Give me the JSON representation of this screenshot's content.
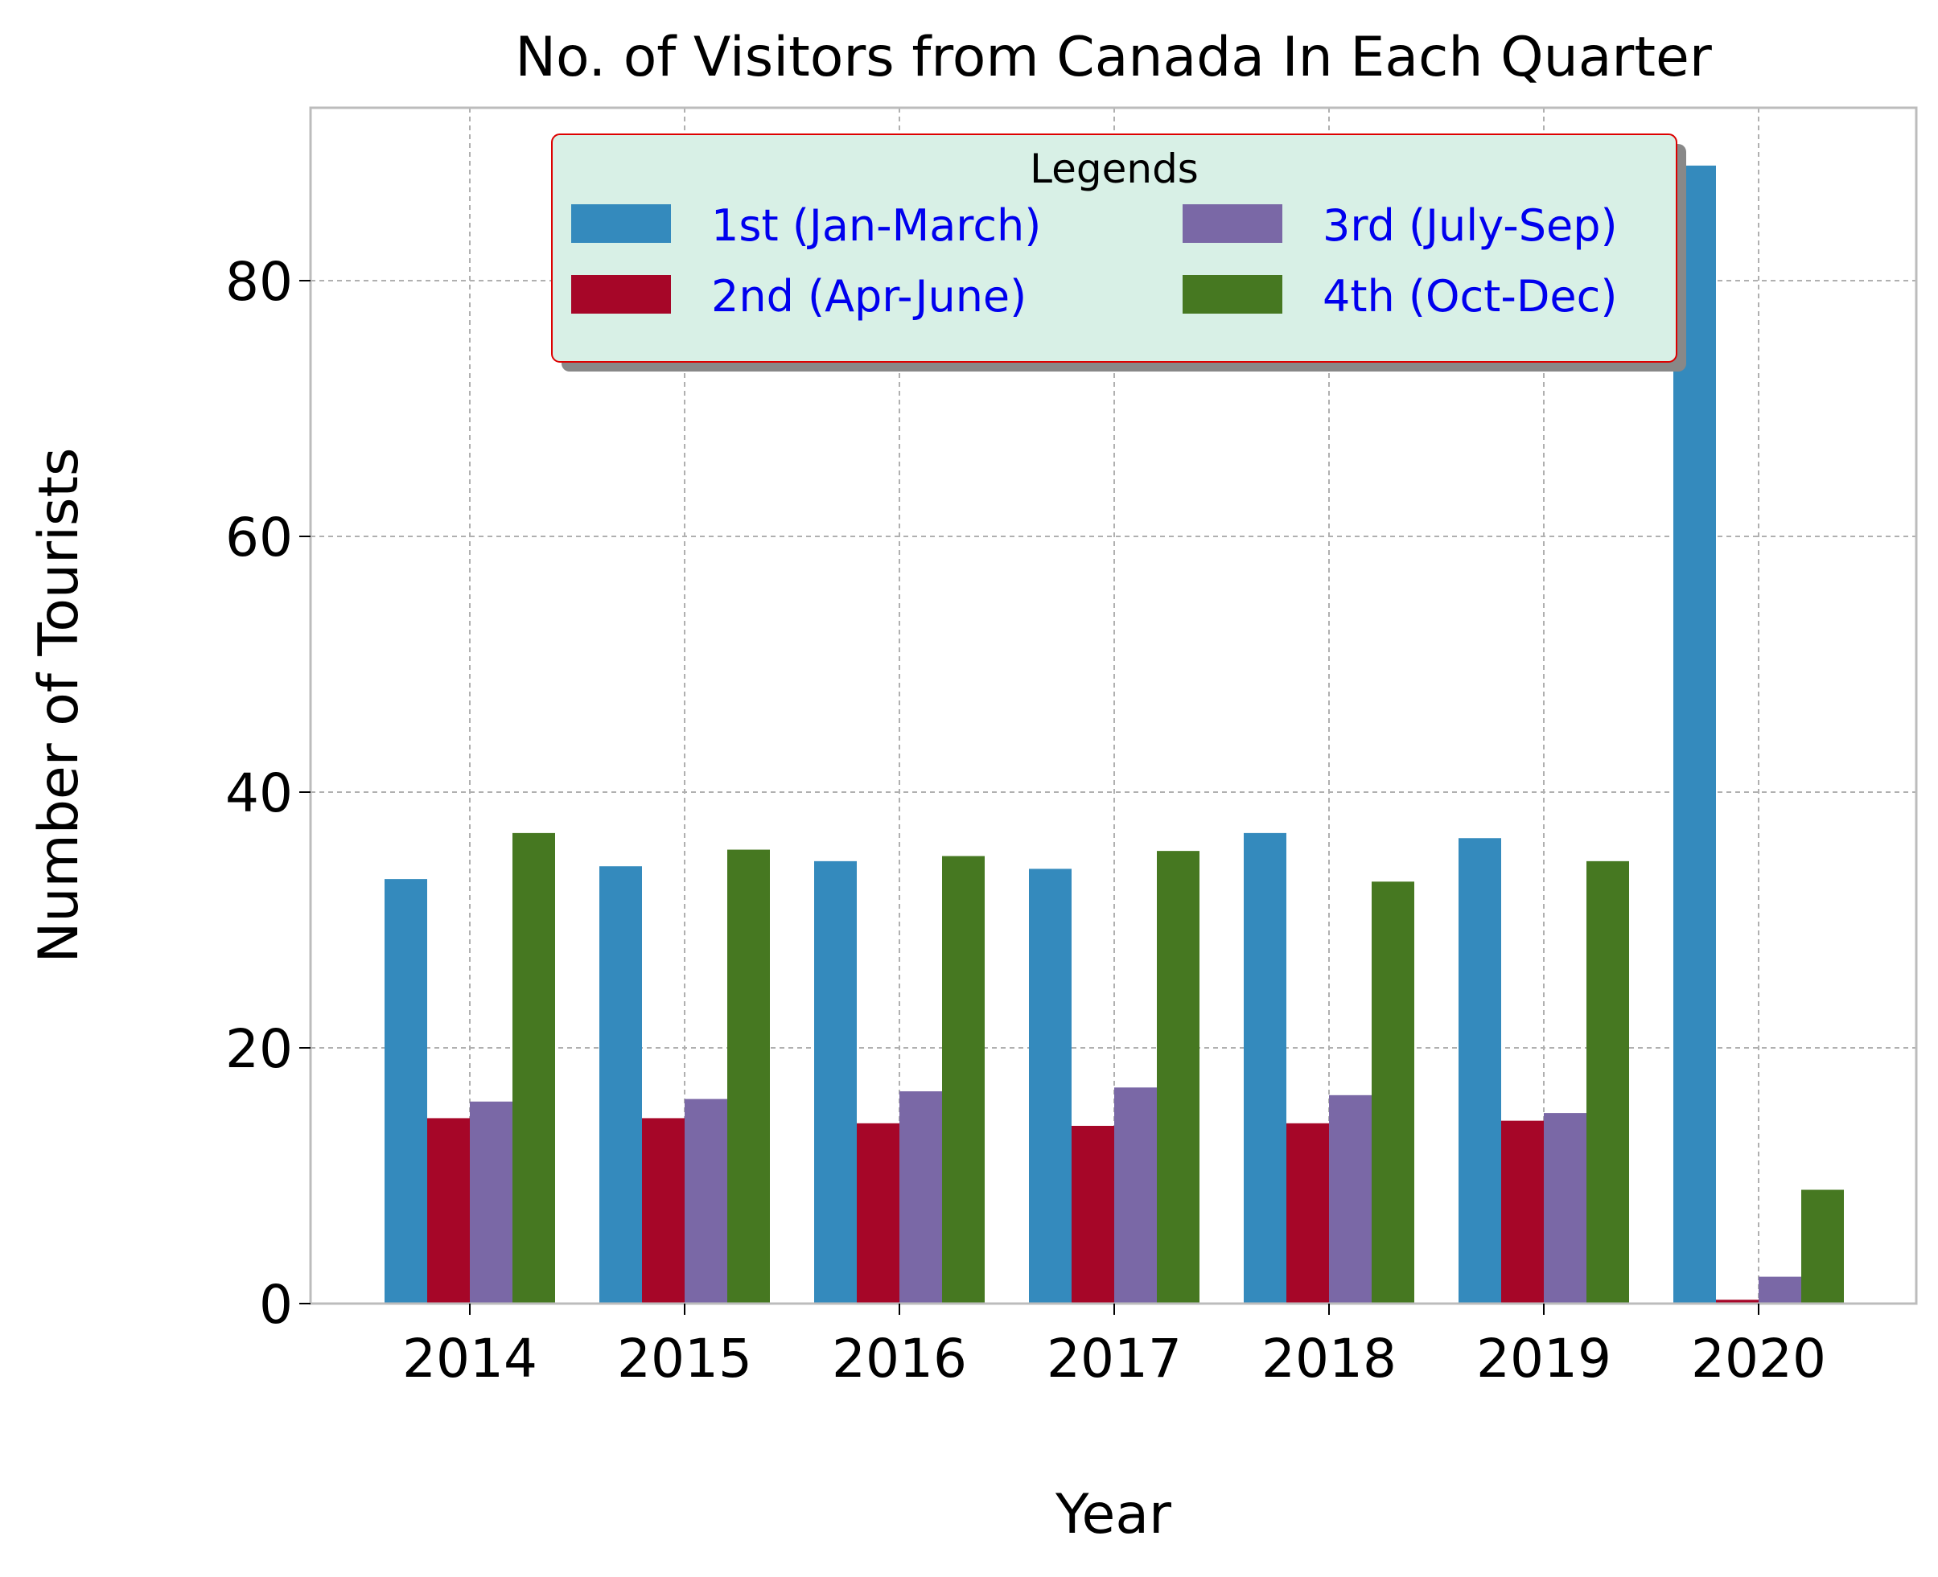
{
  "chart_data": {
    "type": "bar",
    "title": "No. of Visitors from Canada In Each Quarter",
    "xlabel": "Year",
    "ylabel": "Number of Tourists",
    "categories": [
      "2014",
      "2015",
      "2016",
      "2017",
      "2018",
      "2019",
      "2020"
    ],
    "series": [
      {
        "name": "1st (Jan-March)",
        "color": "#348ABD",
        "values": [
          33.2,
          34.2,
          34.6,
          34.0,
          36.8,
          36.4,
          89.0
        ]
      },
      {
        "name": "2nd (Apr-June)",
        "color": "#A60628",
        "values": [
          14.5,
          14.5,
          14.1,
          13.9,
          14.1,
          14.3,
          0.3
        ]
      },
      {
        "name": "3rd (July-Sep)",
        "color": "#7A68A6",
        "values": [
          15.8,
          16.0,
          16.6,
          16.9,
          16.3,
          14.9,
          2.1
        ]
      },
      {
        "name": "4th (Oct-Dec)",
        "color": "#467821",
        "values": [
          36.8,
          35.5,
          35.0,
          35.4,
          33.0,
          34.6,
          8.9
        ]
      }
    ],
    "ylim": [
      0,
      93
    ],
    "yticks": [
      "0",
      "20",
      "40",
      "60",
      "80"
    ],
    "grid": true,
    "legend": {
      "title": "Legends",
      "placement": "top-center",
      "columns": 2,
      "facecolor": "#D8F0E6",
      "edgecolor": "#DD0000",
      "textcolor": "#0000EE"
    }
  }
}
